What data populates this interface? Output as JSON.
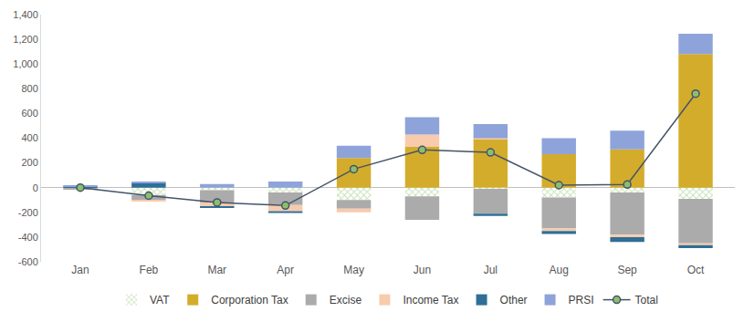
{
  "chart_data": {
    "type": "bar",
    "stacked": true,
    "grid": false,
    "legend": "bottom",
    "categories": [
      "Jan",
      "Feb",
      "Mar",
      "Apr",
      "May",
      "Jun",
      "Jul",
      "Aug",
      "Sep",
      "Oct"
    ],
    "ylim": [
      -600,
      1400
    ],
    "yticks": [
      -600,
      -400,
      -200,
      0,
      200,
      400,
      600,
      800,
      {
        "value": 1000,
        "label": "1,000"
      },
      {
        "value": 1200,
        "label": "1,200"
      },
      {
        "value": 1400,
        "label": "1,400"
      }
    ],
    "series": [
      {
        "name": "VAT",
        "color": "#C6E0B4",
        "marker": "hatch",
        "values": [
          -5,
          -60,
          -20,
          -40,
          -100,
          -70,
          -10,
          -80,
          -40,
          -90
        ]
      },
      {
        "name": "Corporation Tax",
        "color": "#D4AC2B",
        "values": [
          0,
          0,
          0,
          0,
          240,
          330,
          390,
          270,
          310,
          1080
        ]
      },
      {
        "name": "Excise",
        "color": "#ABABAB",
        "values": [
          -5,
          -40,
          -100,
          -100,
          -70,
          -190,
          -200,
          -250,
          -340,
          -360
        ]
      },
      {
        "name": "Income Tax",
        "color": "#F8CBAD",
        "values": [
          0,
          -10,
          -30,
          -50,
          -30,
          100,
          10,
          -20,
          -20,
          -15
        ]
      },
      {
        "name": "Other",
        "color": "#2F6E96",
        "values": [
          10,
          40,
          -10,
          -15,
          0,
          0,
          -20,
          -25,
          -40,
          -25
        ]
      },
      {
        "name": "PRSI",
        "color": "#8EA3D9",
        "values": [
          5,
          10,
          30,
          50,
          100,
          140,
          115,
          130,
          150,
          165
        ]
      },
      {
        "name": "Total",
        "type": "line",
        "marker": "circle",
        "color": "#44546A",
        "values": [
          0,
          -65,
          -120,
          -145,
          150,
          305,
          285,
          20,
          25,
          760
        ]
      }
    ]
  }
}
